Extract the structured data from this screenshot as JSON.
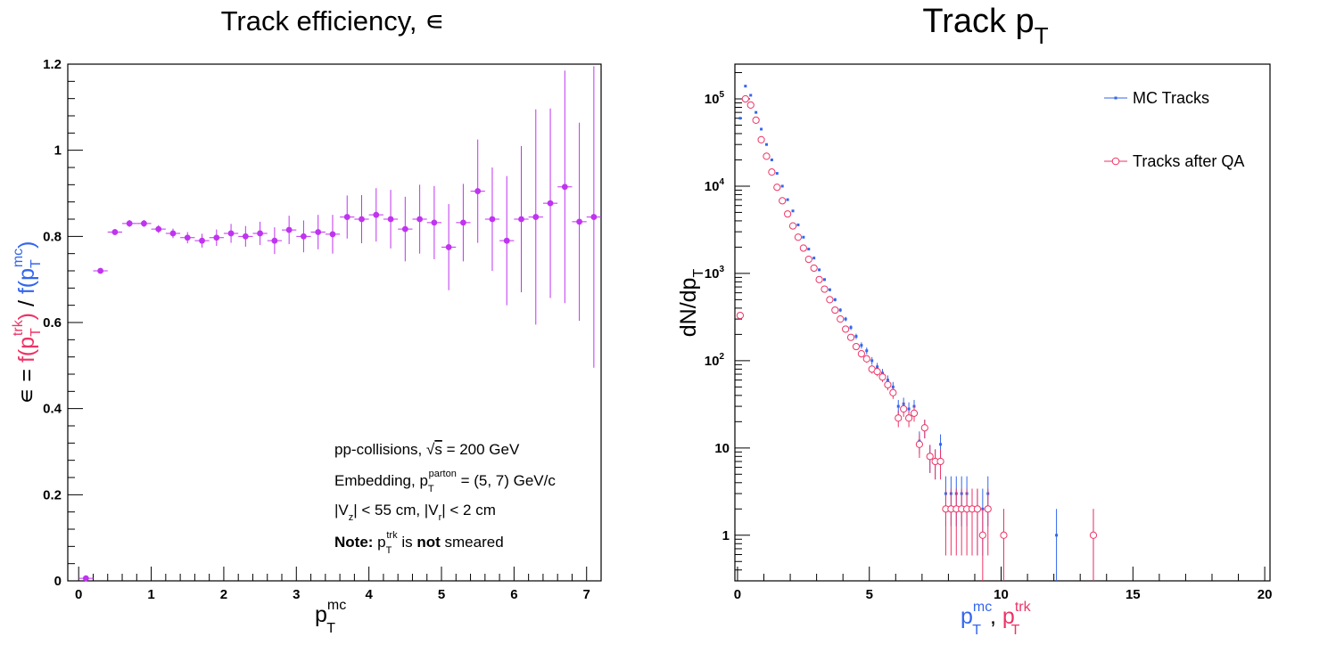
{
  "colors": {
    "efficiency": "#c033f0",
    "mc": "#3366ee",
    "qa": "#ee3366",
    "axis": "#000000"
  },
  "left_panel": {
    "title": "Track efficiency, ∊",
    "ylabel_parts": [
      "∊ = ",
      "f(p",
      "T",
      "trk",
      ")",
      " / ",
      "f(p",
      "T",
      "mc",
      ")"
    ],
    "xlabel_main": "p",
    "xlabel_sup": "mc",
    "xlabel_sub": "T",
    "legend": {
      "line1_a": "pp-collisions, ",
      "line1_sqrt": "√",
      "line1_s": "s",
      "line1_b": " = 200 GeV",
      "line2_a": "Embedding, p",
      "line2_sub": "T",
      "line2_sup": "parton",
      "line2_b": " = (5, 7) GeV/c",
      "line3_a": "|V",
      "line3_sub1": "z",
      "line3_b": "| < 55 cm, |V",
      "line3_sub2": "r",
      "line3_c": "| < 2 cm",
      "line4_note": "Note:",
      "line4_p": " p",
      "line4_sub": "T",
      "line4_sup": "trk",
      "line4_is": " is ",
      "line4_not": "not",
      "line4_end": " smeared"
    }
  },
  "right_panel": {
    "title_main": "Track p",
    "title_sub": "T",
    "ylabel_main": "dN/dp",
    "ylabel_sub": "T",
    "xlabel": {
      "mc_p": "p",
      "mc_sup": "mc",
      "mc_sub": "T",
      "sep": ", ",
      "trk_p": "p",
      "trk_sup": "trk",
      "trk_sub": "T"
    },
    "legend": {
      "mc": "MC Tracks",
      "qa": "Tracks after QA"
    }
  },
  "chart_data": [
    {
      "type": "scatter",
      "title": "Track efficiency, ∊",
      "xlabel": "p_T^mc",
      "ylabel": "∊ = f(p_T^trk) / f(p_T^mc)",
      "xlim": [
        -0.15,
        7.2
      ],
      "ylim": [
        0,
        1.2
      ],
      "xticks": [
        0,
        1,
        2,
        3,
        4,
        5,
        6,
        7
      ],
      "yticks": [
        0,
        0.2,
        0.4,
        0.6,
        0.8,
        1,
        1.2
      ],
      "ytick_labels": [
        "0",
        "0.2",
        "0.4",
        "0.6",
        "0.8",
        "1",
        "1.2"
      ],
      "series": [
        {
          "x": [
            0.1,
            0.3,
            0.5,
            0.7,
            0.9,
            1.1,
            1.3,
            1.5,
            1.7,
            1.9,
            2.1,
            2.3,
            2.5,
            2.7,
            2.9,
            3.1,
            3.3,
            3.5,
            3.7,
            3.9,
            4.1,
            4.3,
            4.5,
            4.7,
            4.9,
            5.1,
            5.3,
            5.5,
            5.7,
            5.9,
            6.1,
            6.3,
            6.5,
            6.7,
            6.9,
            7.1
          ],
          "y": [
            0.006,
            0.72,
            0.81,
            0.83,
            0.83,
            0.817,
            0.807,
            0.797,
            0.79,
            0.797,
            0.807,
            0.8,
            0.807,
            0.79,
            0.815,
            0.8,
            0.81,
            0.805,
            0.845,
            0.84,
            0.85,
            0.84,
            0.817,
            0.84,
            0.832,
            0.775,
            0.832,
            0.905,
            0.84,
            0.79,
            0.84,
            0.845,
            0.877,
            0.915,
            0.834,
            0.845
          ],
          "err": [
            0.004,
            0.006,
            0.007,
            0.008,
            0.008,
            0.009,
            0.011,
            0.013,
            0.016,
            0.019,
            0.022,
            0.024,
            0.027,
            0.031,
            0.033,
            0.037,
            0.04,
            0.045,
            0.05,
            0.056,
            0.062,
            0.068,
            0.075,
            0.08,
            0.085,
            0.1,
            0.09,
            0.12,
            0.12,
            0.15,
            0.17,
            0.25,
            0.22,
            0.27,
            0.23,
            0.35
          ]
        }
      ]
    },
    {
      "type": "scatter",
      "title": "Track p_T",
      "xlabel": "p_T^mc, p_T^trk",
      "ylabel": "dN/dp_T",
      "xlim": [
        -0.1,
        20.2
      ],
      "ylim": [
        0.3,
        250000
      ],
      "yscale": "log",
      "xticks": [
        0,
        5,
        10,
        15,
        20
      ],
      "yticks": [
        1,
        10,
        100,
        1000,
        10000,
        100000
      ],
      "legend_position": "top-right",
      "series": [
        {
          "name": "MC Tracks",
          "x": [
            0.1,
            0.3,
            0.5,
            0.7,
            0.9,
            1.1,
            1.3,
            1.5,
            1.7,
            1.9,
            2.1,
            2.3,
            2.5,
            2.7,
            2.9,
            3.1,
            3.3,
            3.5,
            3.7,
            3.9,
            4.1,
            4.3,
            4.5,
            4.7,
            4.9,
            5.1,
            5.3,
            5.5,
            5.7,
            5.9,
            6.1,
            6.3,
            6.5,
            6.7,
            6.9,
            7.1,
            7.3,
            7.5,
            7.7,
            7.9,
            8.1,
            8.3,
            8.5,
            8.7,
            8.9,
            9.1,
            9.3,
            9.5,
            10.1,
            12.1,
            13.5
          ],
          "y": [
            60000,
            140000,
            110000,
            70000,
            45000,
            30000,
            20000,
            14000,
            10000,
            7000,
            5200,
            3600,
            2600,
            1900,
            1500,
            1100,
            850,
            650,
            500,
            380,
            300,
            240,
            190,
            150,
            130,
            100,
            85,
            72,
            60,
            50,
            30,
            32,
            28,
            30,
            12,
            17,
            8,
            7,
            11,
            3,
            3,
            3,
            3,
            3,
            2,
            2,
            2,
            3,
            1,
            1,
            1
          ]
        },
        {
          "name": "Tracks after QA",
          "x": [
            0.1,
            0.3,
            0.5,
            0.7,
            0.9,
            1.1,
            1.3,
            1.5,
            1.7,
            1.9,
            2.1,
            2.3,
            2.5,
            2.7,
            2.9,
            3.1,
            3.3,
            3.5,
            3.7,
            3.9,
            4.1,
            4.3,
            4.5,
            4.7,
            4.9,
            5.1,
            5.3,
            5.5,
            5.7,
            5.9,
            6.1,
            6.3,
            6.5,
            6.7,
            6.9,
            7.1,
            7.3,
            7.5,
            7.7,
            7.9,
            8.1,
            8.3,
            8.5,
            8.7,
            8.9,
            9.1,
            9.3,
            9.5,
            10.1,
            13.5
          ],
          "y": [
            330,
            100000,
            85000,
            57000,
            34000,
            22000,
            14500,
            9700,
            6800,
            4800,
            3500,
            2600,
            1950,
            1450,
            1150,
            850,
            660,
            500,
            380,
            300,
            230,
            185,
            145,
            120,
            105,
            80,
            75,
            65,
            53,
            43,
            22,
            28,
            22,
            25,
            11,
            17,
            8,
            7,
            7,
            2,
            2,
            2,
            2,
            2,
            2,
            2,
            1,
            2,
            1,
            1
          ]
        }
      ]
    }
  ]
}
